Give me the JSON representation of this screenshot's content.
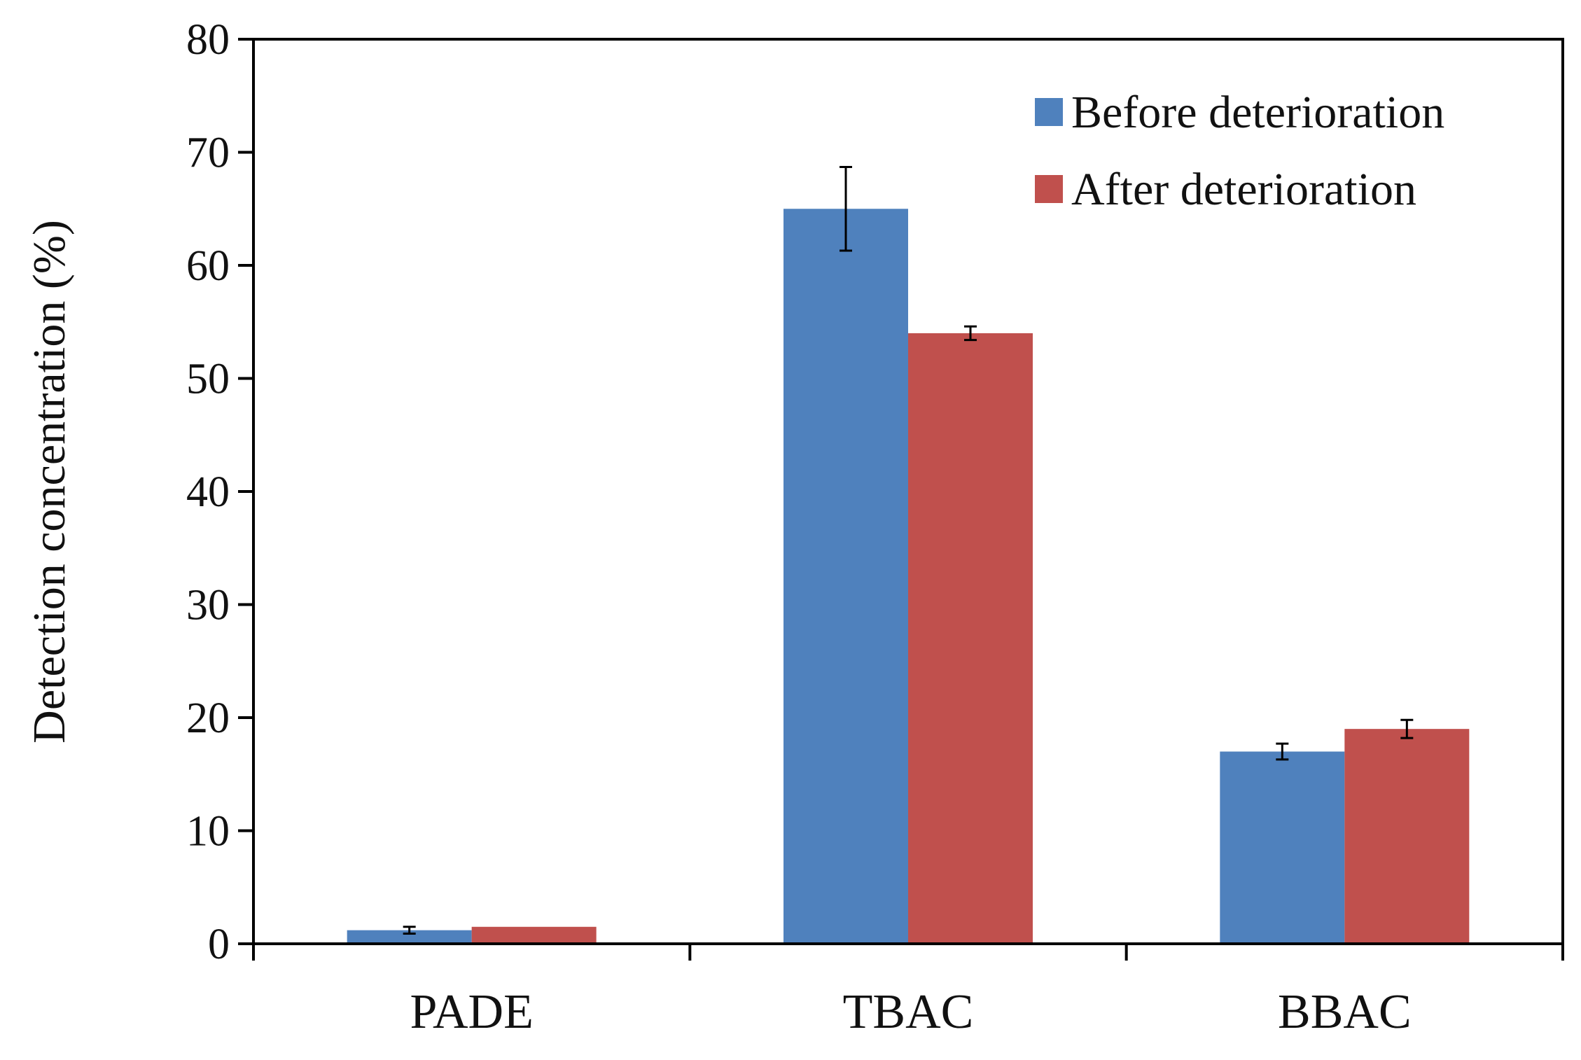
{
  "chart_data": {
    "type": "bar",
    "title": "",
    "xlabel": "",
    "ylabel": "Detection concentration (%)",
    "ylim": [
      0,
      80
    ],
    "yticks": [
      0,
      10,
      20,
      30,
      40,
      50,
      60,
      70,
      80
    ],
    "categories": [
      "PADE",
      "TBAC",
      "BBAC"
    ],
    "series": [
      {
        "name": "Before deterioration",
        "color": "#4f81bd",
        "values": [
          1.2,
          65,
          17
        ],
        "errors": [
          0.3,
          3.7,
          0.7
        ]
      },
      {
        "name": "After deterioration",
        "color": "#c0504d",
        "values": [
          1.5,
          54,
          19
        ],
        "errors": [
          0,
          0.6,
          0.8
        ]
      }
    ],
    "legend": "top-right",
    "grid": false
  }
}
